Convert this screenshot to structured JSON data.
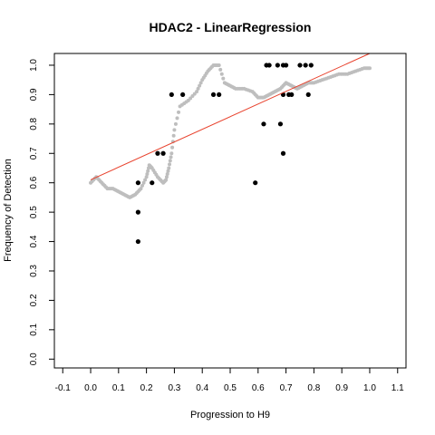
{
  "chart_data": {
    "type": "scatter",
    "title": "HDAC2 - LinearRegression",
    "xlabel": "Progression to H9",
    "ylabel": "Frequency of Detection",
    "xlim": [
      -0.13,
      1.13
    ],
    "ylim": [
      -0.03,
      1.04
    ],
    "x_ticks": [
      "-0.1",
      "0.0",
      "0.1",
      "0.2",
      "0.3",
      "0.4",
      "0.5",
      "0.6",
      "0.7",
      "0.8",
      "0.9",
      "1.0",
      "1.1"
    ],
    "y_ticks": [
      "0.0",
      "0.1",
      "0.2",
      "0.3",
      "0.4",
      "0.5",
      "0.6",
      "0.7",
      "0.8",
      "0.9",
      "1.0"
    ],
    "grid": false,
    "legend": "none",
    "colors": {
      "observed": "#000000",
      "smoothed": "#bebebe",
      "regression": "#e8412c",
      "frame": "#000000"
    },
    "regression_line": {
      "intercept": 0.61,
      "slope": 0.43
    },
    "smoothed": {
      "x": [
        0.0,
        0.02,
        0.04,
        0.06,
        0.08,
        0.1,
        0.12,
        0.14,
        0.16,
        0.18,
        0.2,
        0.21,
        0.22,
        0.24,
        0.26,
        0.27,
        0.28,
        0.29,
        0.3,
        0.32,
        0.35,
        0.38,
        0.4,
        0.42,
        0.44,
        0.46,
        0.48,
        0.5,
        0.52,
        0.55,
        0.58,
        0.6,
        0.62,
        0.64,
        0.66,
        0.68,
        0.7,
        0.72,
        0.74,
        0.76,
        0.78,
        0.8,
        0.83,
        0.86,
        0.89,
        0.92,
        0.95,
        0.98,
        1.0
      ],
      "y": [
        0.6,
        0.62,
        0.6,
        0.58,
        0.58,
        0.57,
        0.56,
        0.55,
        0.56,
        0.58,
        0.62,
        0.66,
        0.65,
        0.62,
        0.6,
        0.61,
        0.65,
        0.7,
        0.78,
        0.86,
        0.88,
        0.91,
        0.95,
        0.98,
        1.0,
        1.0,
        0.94,
        0.93,
        0.92,
        0.92,
        0.91,
        0.89,
        0.89,
        0.9,
        0.91,
        0.92,
        0.94,
        0.93,
        0.92,
        0.93,
        0.94,
        0.94,
        0.95,
        0.96,
        0.97,
        0.97,
        0.98,
        0.99,
        0.99
      ]
    },
    "observed": {
      "x": [
        0.17,
        0.17,
        0.17,
        0.22,
        0.24,
        0.26,
        0.29,
        0.33,
        0.44,
        0.46,
        0.59,
        0.62,
        0.63,
        0.64,
        0.67,
        0.68,
        0.69,
        0.69,
        0.69,
        0.7,
        0.71,
        0.72,
        0.75,
        0.77,
        0.78,
        0.79
      ],
      "y": [
        0.4,
        0.5,
        0.6,
        0.6,
        0.7,
        0.7,
        0.9,
        0.9,
        0.9,
        0.9,
        0.6,
        0.8,
        1.0,
        1.0,
        1.0,
        0.8,
        0.7,
        0.9,
        1.0,
        1.0,
        0.9,
        0.9,
        1.0,
        1.0,
        0.9,
        1.0
      ]
    }
  }
}
